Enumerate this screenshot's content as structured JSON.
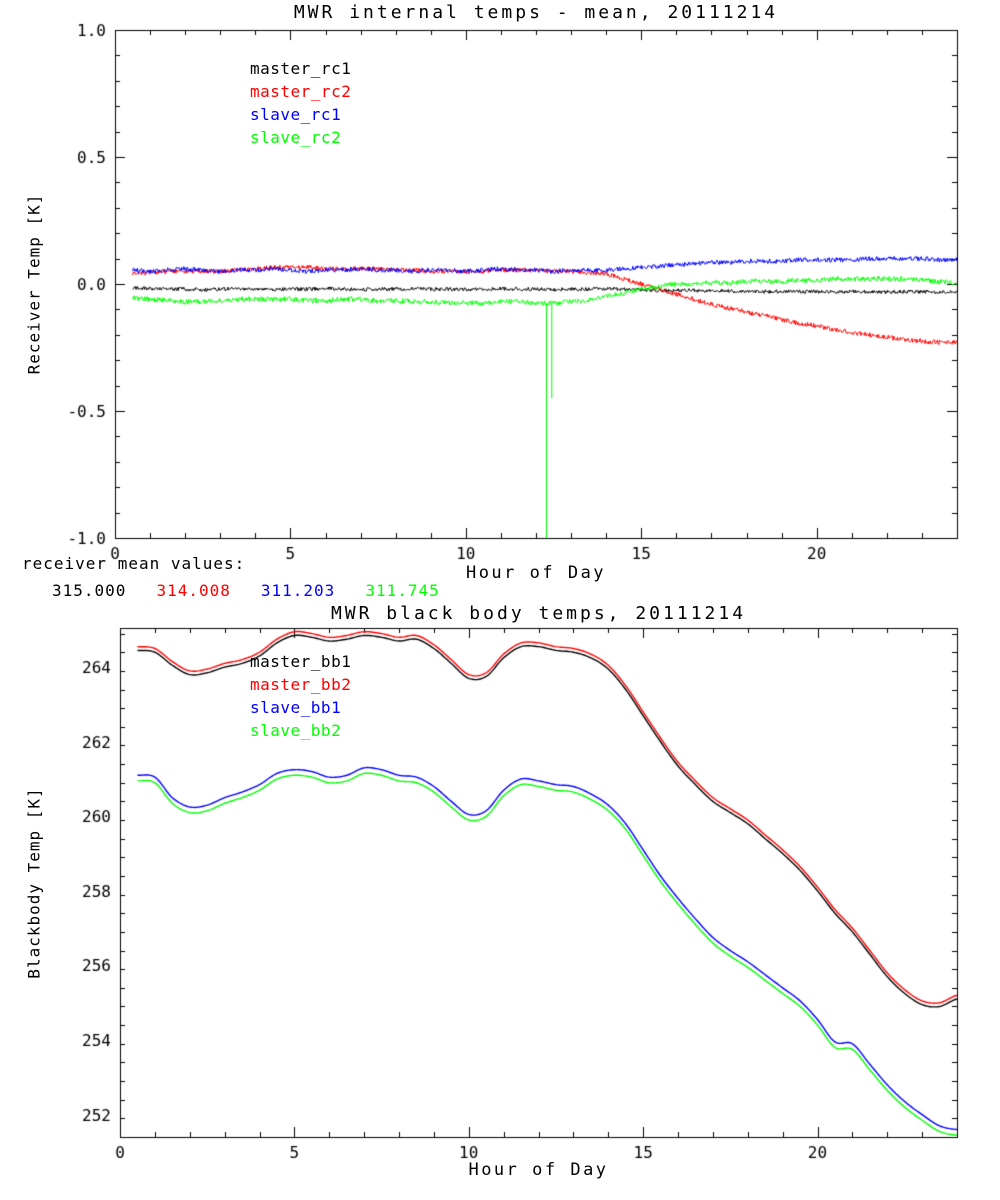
{
  "figure": {
    "background": "#ffffff"
  },
  "chart_data": [
    {
      "type": "line",
      "title": "MWR internal temps - mean, 20111214",
      "xlabel": "Hour of Day",
      "ylabel": "Receiver Temp [K]",
      "xlim": [
        0,
        24
      ],
      "ylim": [
        -1.0,
        1.0
      ],
      "xticks": [
        0,
        5,
        10,
        15,
        20
      ],
      "xtick_labels": [
        "0",
        "5",
        "10",
        "15",
        "20"
      ],
      "yticks": [
        -1.0,
        -0.5,
        0.0,
        0.5,
        1.0
      ],
      "ytick_labels": [
        "-1.0",
        "-0.5",
        "0.0",
        "0.5",
        "1.0"
      ],
      "x_minor": 1,
      "y_minor": 0.1,
      "grid": false,
      "legend_position": "upper-left-inset",
      "x": [
        0.5,
        1.0,
        1.5,
        2.0,
        2.5,
        3.0,
        3.5,
        4.0,
        4.5,
        5.0,
        5.5,
        6.0,
        6.5,
        7.0,
        7.5,
        8.0,
        8.5,
        9.0,
        9.5,
        10.0,
        10.5,
        11.0,
        11.5,
        12.0,
        12.5,
        13.0,
        13.5,
        14.0,
        14.5,
        15.0,
        15.5,
        16.0,
        16.5,
        17.0,
        17.5,
        18.0,
        18.5,
        19.0,
        19.5,
        20.0,
        20.5,
        21.0,
        21.5,
        22.0,
        22.5,
        23.0,
        23.5,
        24.0
      ],
      "series": [
        {
          "name": "master_rc1",
          "color": "#000000",
          "noise": 0.007,
          "values": [
            -0.015,
            -0.018,
            -0.02,
            -0.02,
            -0.022,
            -0.02,
            -0.018,
            -0.02,
            -0.022,
            -0.02,
            -0.02,
            -0.018,
            -0.02,
            -0.022,
            -0.02,
            -0.02,
            -0.018,
            -0.02,
            -0.02,
            -0.022,
            -0.02,
            -0.018,
            -0.02,
            -0.02,
            -0.022,
            -0.02,
            -0.02,
            -0.018,
            -0.02,
            -0.022,
            -0.025,
            -0.025,
            -0.025,
            -0.028,
            -0.028,
            -0.03,
            -0.03,
            -0.03,
            -0.03,
            -0.03,
            -0.032,
            -0.03,
            -0.03,
            -0.032,
            -0.03,
            -0.03,
            -0.032,
            -0.03
          ]
        },
        {
          "name": "master_rc2",
          "color": "#ff0000",
          "noise": 0.009,
          "values": [
            0.04,
            0.045,
            0.05,
            0.05,
            0.05,
            0.05,
            0.055,
            0.06,
            0.065,
            0.065,
            0.065,
            0.06,
            0.06,
            0.06,
            0.06,
            0.055,
            0.055,
            0.05,
            0.05,
            0.05,
            0.05,
            0.055,
            0.055,
            0.055,
            0.05,
            0.05,
            0.045,
            0.04,
            0.02,
            0.0,
            -0.02,
            -0.04,
            -0.06,
            -0.08,
            -0.095,
            -0.11,
            -0.125,
            -0.14,
            -0.155,
            -0.165,
            -0.18,
            -0.19,
            -0.2,
            -0.21,
            -0.22,
            -0.225,
            -0.23,
            -0.23
          ]
        },
        {
          "name": "slave_rc1",
          "color": "#0000ff",
          "noise": 0.009,
          "values": [
            0.055,
            0.05,
            0.055,
            0.06,
            0.055,
            0.05,
            0.055,
            0.055,
            0.06,
            0.055,
            0.05,
            0.055,
            0.055,
            0.06,
            0.055,
            0.055,
            0.05,
            0.055,
            0.055,
            0.05,
            0.055,
            0.06,
            0.055,
            0.055,
            0.05,
            0.055,
            0.055,
            0.055,
            0.06,
            0.065,
            0.07,
            0.075,
            0.08,
            0.085,
            0.085,
            0.09,
            0.09,
            0.09,
            0.095,
            0.095,
            0.095,
            0.095,
            0.1,
            0.1,
            0.1,
            0.1,
            0.095,
            0.095
          ]
        },
        {
          "name": "slave_rc2",
          "color": "#00ff00",
          "noise": 0.01,
          "values": [
            -0.055,
            -0.06,
            -0.065,
            -0.07,
            -0.07,
            -0.065,
            -0.06,
            -0.06,
            -0.06,
            -0.06,
            -0.065,
            -0.065,
            -0.06,
            -0.06,
            -0.065,
            -0.065,
            -0.07,
            -0.07,
            -0.075,
            -0.075,
            -0.075,
            -0.07,
            -0.07,
            -0.075,
            -0.075,
            -0.07,
            -0.065,
            -0.05,
            -0.035,
            -0.02,
            -0.01,
            0.0,
            0.0,
            0.005,
            0.005,
            0.01,
            0.01,
            0.01,
            0.015,
            0.015,
            0.02,
            0.02,
            0.02,
            0.02,
            0.02,
            0.015,
            0.01,
            0.005
          ],
          "spikes": [
            {
              "x": 12.3,
              "y": -1.05
            },
            {
              "x": 12.45,
              "y": -0.45
            }
          ]
        }
      ]
    },
    {
      "type": "line",
      "title": "MWR black body temps, 20111214",
      "xlabel": "Hour of Day",
      "ylabel": "Blackbody Temp [K]",
      "xlim": [
        0,
        24
      ],
      "ylim": [
        251.4,
        265.05
      ],
      "xticks": [
        0,
        5,
        10,
        15,
        20
      ],
      "xtick_labels": [
        "0",
        "5",
        "10",
        "15",
        "20"
      ],
      "yticks": [
        252,
        254,
        256,
        258,
        260,
        262,
        264
      ],
      "ytick_labels": [
        "252",
        "254",
        "256",
        "258",
        "260",
        "262",
        "264"
      ],
      "x_minor": 1,
      "y_minor": 0.5,
      "grid": false,
      "legend_position": "upper-left-inset",
      "x": [
        0.5,
        1.0,
        1.5,
        2.0,
        2.5,
        3.0,
        3.5,
        4.0,
        4.5,
        5.0,
        5.5,
        6.0,
        6.5,
        7.0,
        7.5,
        8.0,
        8.5,
        9.0,
        9.5,
        10.0,
        10.5,
        11.0,
        11.5,
        12.0,
        12.5,
        13.0,
        13.5,
        14.0,
        14.5,
        15.0,
        15.5,
        16.0,
        16.5,
        17.0,
        17.5,
        18.0,
        18.5,
        19.0,
        19.5,
        20.0,
        20.5,
        21.0,
        21.5,
        22.0,
        22.5,
        23.0,
        23.5,
        24.0
      ],
      "series": [
        {
          "name": "master_bb1",
          "color": "#000000",
          "noise": 0,
          "values": [
            264.45,
            264.4,
            264.05,
            263.8,
            263.85,
            264.0,
            264.1,
            264.3,
            264.65,
            264.85,
            264.8,
            264.7,
            264.75,
            264.85,
            264.8,
            264.7,
            264.75,
            264.5,
            264.1,
            263.7,
            263.75,
            264.25,
            264.55,
            264.55,
            264.45,
            264.4,
            264.25,
            263.95,
            263.4,
            262.7,
            262.0,
            261.35,
            260.85,
            260.4,
            260.1,
            259.8,
            259.4,
            259.0,
            258.55,
            258.0,
            257.4,
            256.9,
            256.3,
            255.7,
            255.25,
            254.95,
            254.9,
            255.1
          ]
        },
        {
          "name": "master_bb2",
          "color": "#ff0000",
          "noise": 0,
          "values": [
            264.55,
            264.5,
            264.15,
            263.9,
            263.95,
            264.1,
            264.2,
            264.4,
            264.75,
            264.95,
            264.9,
            264.8,
            264.85,
            264.95,
            264.9,
            264.8,
            264.85,
            264.6,
            264.2,
            263.8,
            263.85,
            264.35,
            264.65,
            264.65,
            264.55,
            264.5,
            264.35,
            264.05,
            263.5,
            262.8,
            262.1,
            261.45,
            260.95,
            260.5,
            260.2,
            259.9,
            259.5,
            259.1,
            258.65,
            258.1,
            257.5,
            257.0,
            256.4,
            255.8,
            255.35,
            255.05,
            255.0,
            255.2
          ]
        },
        {
          "name": "slave_bb1",
          "color": "#0000ff",
          "noise": 0,
          "values": [
            261.1,
            261.05,
            260.5,
            260.25,
            260.3,
            260.5,
            260.65,
            260.85,
            261.15,
            261.25,
            261.2,
            261.05,
            261.1,
            261.3,
            261.25,
            261.1,
            261.05,
            260.8,
            260.4,
            260.05,
            260.15,
            260.7,
            261.0,
            260.95,
            260.85,
            260.8,
            260.6,
            260.3,
            259.8,
            259.1,
            258.4,
            257.8,
            257.25,
            256.75,
            256.4,
            256.1,
            255.75,
            255.4,
            255.05,
            254.55,
            253.95,
            253.9,
            253.35,
            252.8,
            252.35,
            252.0,
            251.7,
            251.6
          ]
        },
        {
          "name": "slave_bb2",
          "color": "#00ff00",
          "noise": 0,
          "values": [
            260.95,
            260.9,
            260.35,
            260.1,
            260.15,
            260.35,
            260.5,
            260.7,
            261.0,
            261.1,
            261.05,
            260.9,
            260.95,
            261.15,
            261.1,
            260.95,
            260.9,
            260.65,
            260.25,
            259.9,
            260.0,
            260.55,
            260.85,
            260.8,
            260.7,
            260.65,
            260.45,
            260.15,
            259.65,
            258.95,
            258.25,
            257.65,
            257.1,
            256.6,
            256.25,
            255.95,
            255.6,
            255.25,
            254.9,
            254.4,
            253.8,
            253.75,
            253.2,
            252.65,
            252.2,
            251.85,
            251.55,
            251.45
          ]
        }
      ]
    }
  ],
  "annotations": {
    "receiver_means": {
      "label": "receiver mean values:",
      "values": [
        {
          "text": "315.000",
          "color": "#000000"
        },
        {
          "text": "314.008",
          "color": "#ff0000"
        },
        {
          "text": "311.203",
          "color": "#0000ff"
        },
        {
          "text": "311.745",
          "color": "#00ff00"
        }
      ]
    }
  }
}
